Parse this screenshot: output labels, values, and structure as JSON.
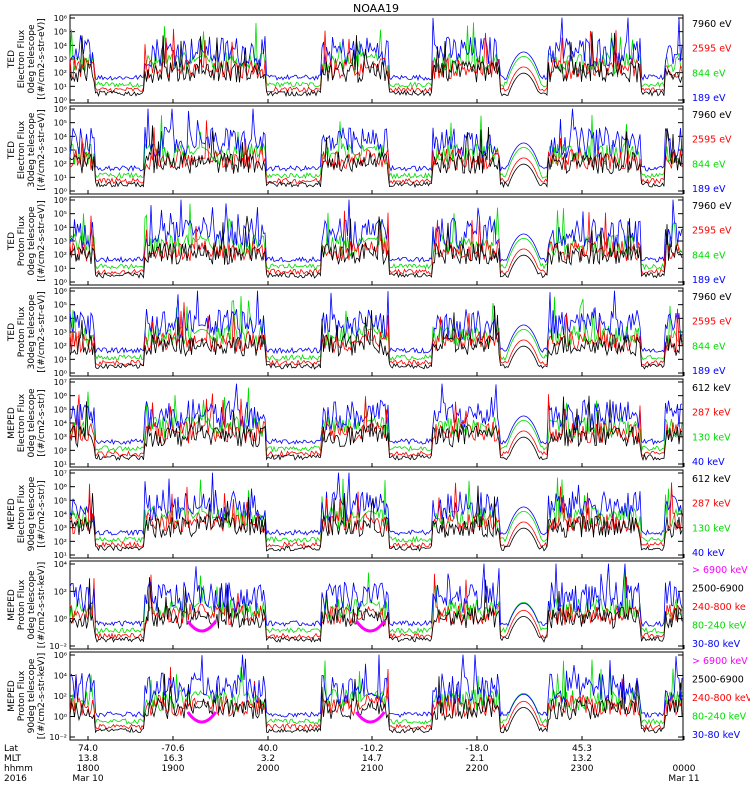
{
  "title": "NOAA19",
  "colors": {
    "black": "#000000",
    "red": "#ff0000",
    "green": "#00dd00",
    "blue": "#0000ff",
    "magenta": "#ff00ff"
  },
  "footer": {
    "rows": [
      {
        "label": "Lat",
        "values": [
          "74.0",
          "-70.6",
          "40.0",
          "-10.2",
          "-18.0",
          "45.3",
          ""
        ]
      },
      {
        "label": "MLT",
        "values": [
          "13.8",
          "16.3",
          "3.2",
          "14.7",
          "2.1",
          "13.2",
          ""
        ]
      },
      {
        "label": "hhmm",
        "values": [
          "1800",
          "1900",
          "2000",
          "2100",
          "2200",
          "2300",
          "0000"
        ]
      },
      {
        "label": "2016",
        "values": [
          "Mar 10",
          "",
          "",
          "",
          "",
          "",
          "Mar 11"
        ]
      }
    ]
  },
  "chart_data": [
    {
      "type": "line",
      "instrument": "TED",
      "ylabel": [
        "TED",
        "Electron Flux",
        "0deg telescope",
        "[(#/cm2-s-str-eV)]"
      ],
      "yticks": [
        "10⁰",
        "10¹",
        "10²",
        "10³",
        "10⁴",
        "10⁵",
        "10⁶"
      ],
      "ylog": [
        0,
        6
      ],
      "channels": [
        {
          "name": "7960 eV",
          "color": "black"
        },
        {
          "name": "2595 eV",
          "color": "red"
        },
        {
          "name": "844 eV",
          "color": "green"
        },
        {
          "name": "189 eV",
          "color": "blue"
        }
      ]
    },
    {
      "type": "line",
      "instrument": "TED",
      "ylabel": [
        "TED",
        "Electron Flux",
        "30deg telescope",
        "[(#/cm2-s-str-eV)]"
      ],
      "yticks": [
        "10⁰",
        "10¹",
        "10²",
        "10³",
        "10⁴",
        "10⁵",
        "10⁶"
      ],
      "ylog": [
        0,
        6
      ],
      "channels": [
        {
          "name": "7960 eV",
          "color": "black"
        },
        {
          "name": "2595 eV",
          "color": "red"
        },
        {
          "name": "844 eV",
          "color": "green"
        },
        {
          "name": "189 eV",
          "color": "blue"
        }
      ]
    },
    {
      "type": "line",
      "instrument": "TED",
      "ylabel": [
        "TED",
        "Proton Flux",
        "0deg telescope",
        "[(#/cm2-s-str-eV)]"
      ],
      "yticks": [
        "10⁰",
        "10¹",
        "10²",
        "10³",
        "10⁴",
        "10⁵",
        "10⁶"
      ],
      "ylog": [
        0,
        6
      ],
      "channels": [
        {
          "name": "7960 eV",
          "color": "black"
        },
        {
          "name": "2595 eV",
          "color": "red"
        },
        {
          "name": "844 eV",
          "color": "green"
        },
        {
          "name": "189 eV",
          "color": "blue"
        }
      ]
    },
    {
      "type": "line",
      "instrument": "TED",
      "ylabel": [
        "TED",
        "Proton Flux",
        "30deg telescope",
        "[(#/cm2-s-str-eV)]"
      ],
      "yticks": [
        "10⁰",
        "10¹",
        "10²",
        "10³",
        "10⁴",
        "10⁵",
        "10⁶"
      ],
      "ylog": [
        0,
        6
      ],
      "channels": [
        {
          "name": "7960 eV",
          "color": "black"
        },
        {
          "name": "2595 eV",
          "color": "red"
        },
        {
          "name": "844 eV",
          "color": "green"
        },
        {
          "name": "189 eV",
          "color": "blue"
        }
      ]
    },
    {
      "type": "line",
      "instrument": "MEPED",
      "ylabel": [
        "MEPED",
        "Electron Flux",
        "0deg telescope",
        "[(#/cm2-s-str)]"
      ],
      "yticks": [
        "10¹",
        "10²",
        "10³",
        "10⁴",
        "10⁵",
        "10⁶",
        "10⁷"
      ],
      "ylog": [
        1,
        7
      ],
      "channels": [
        {
          "name": "612 keV",
          "color": "black"
        },
        {
          "name": "287 keV",
          "color": "red"
        },
        {
          "name": "130 keV",
          "color": "green"
        },
        {
          "name": "40 keV",
          "color": "blue"
        }
      ]
    },
    {
      "type": "line",
      "instrument": "MEPED",
      "ylabel": [
        "MEPED",
        "Electron Flux",
        "90deg telescope",
        "[(#/cm2-s-str)]"
      ],
      "yticks": [
        "10¹",
        "10²",
        "10³",
        "10⁴",
        "10⁵",
        "10⁶",
        "10⁷"
      ],
      "ylog": [
        1,
        7
      ],
      "channels": [
        {
          "name": "612 keV",
          "color": "black"
        },
        {
          "name": "287 keV",
          "color": "red"
        },
        {
          "name": "130 keV",
          "color": "green"
        },
        {
          "name": "40 keV",
          "color": "blue"
        }
      ]
    },
    {
      "type": "line",
      "instrument": "MEPED",
      "ylabel": [
        "MEPED",
        "Proton Flux",
        "0deg telescope",
        "[(#/cm2-s-str-keV)]"
      ],
      "yticks": [
        "10⁻²",
        "10⁰",
        "10²",
        "10⁴"
      ],
      "ylog": [
        -2,
        5
      ],
      "channels": [
        {
          "name": "> 6900 keV",
          "color": "magenta"
        },
        {
          "name": "2500-6900",
          "color": "black"
        },
        {
          "name": "240-800 ke",
          "color": "red"
        },
        {
          "name": "80-240 keV",
          "color": "green"
        },
        {
          "name": "30-80 keV",
          "color": "blue"
        }
      ]
    },
    {
      "type": "line",
      "instrument": "MEPED",
      "ylabel": [
        "MEPED",
        "Proton Flux",
        "90deg telescope",
        "[(#/cm2-s-str-keV)]"
      ],
      "yticks": [
        "10⁻²",
        "10⁰",
        "10²",
        "10⁴",
        "10⁶"
      ],
      "ylog": [
        -2,
        6
      ],
      "channels": [
        {
          "name": "> 6900 keV",
          "color": "magenta"
        },
        {
          "name": "2500-6900",
          "color": "black"
        },
        {
          "name": "240-800 keV",
          "color": "red"
        },
        {
          "name": "80-240 keV",
          "color": "green"
        },
        {
          "name": "30-80 keV",
          "color": "blue"
        }
      ]
    }
  ]
}
